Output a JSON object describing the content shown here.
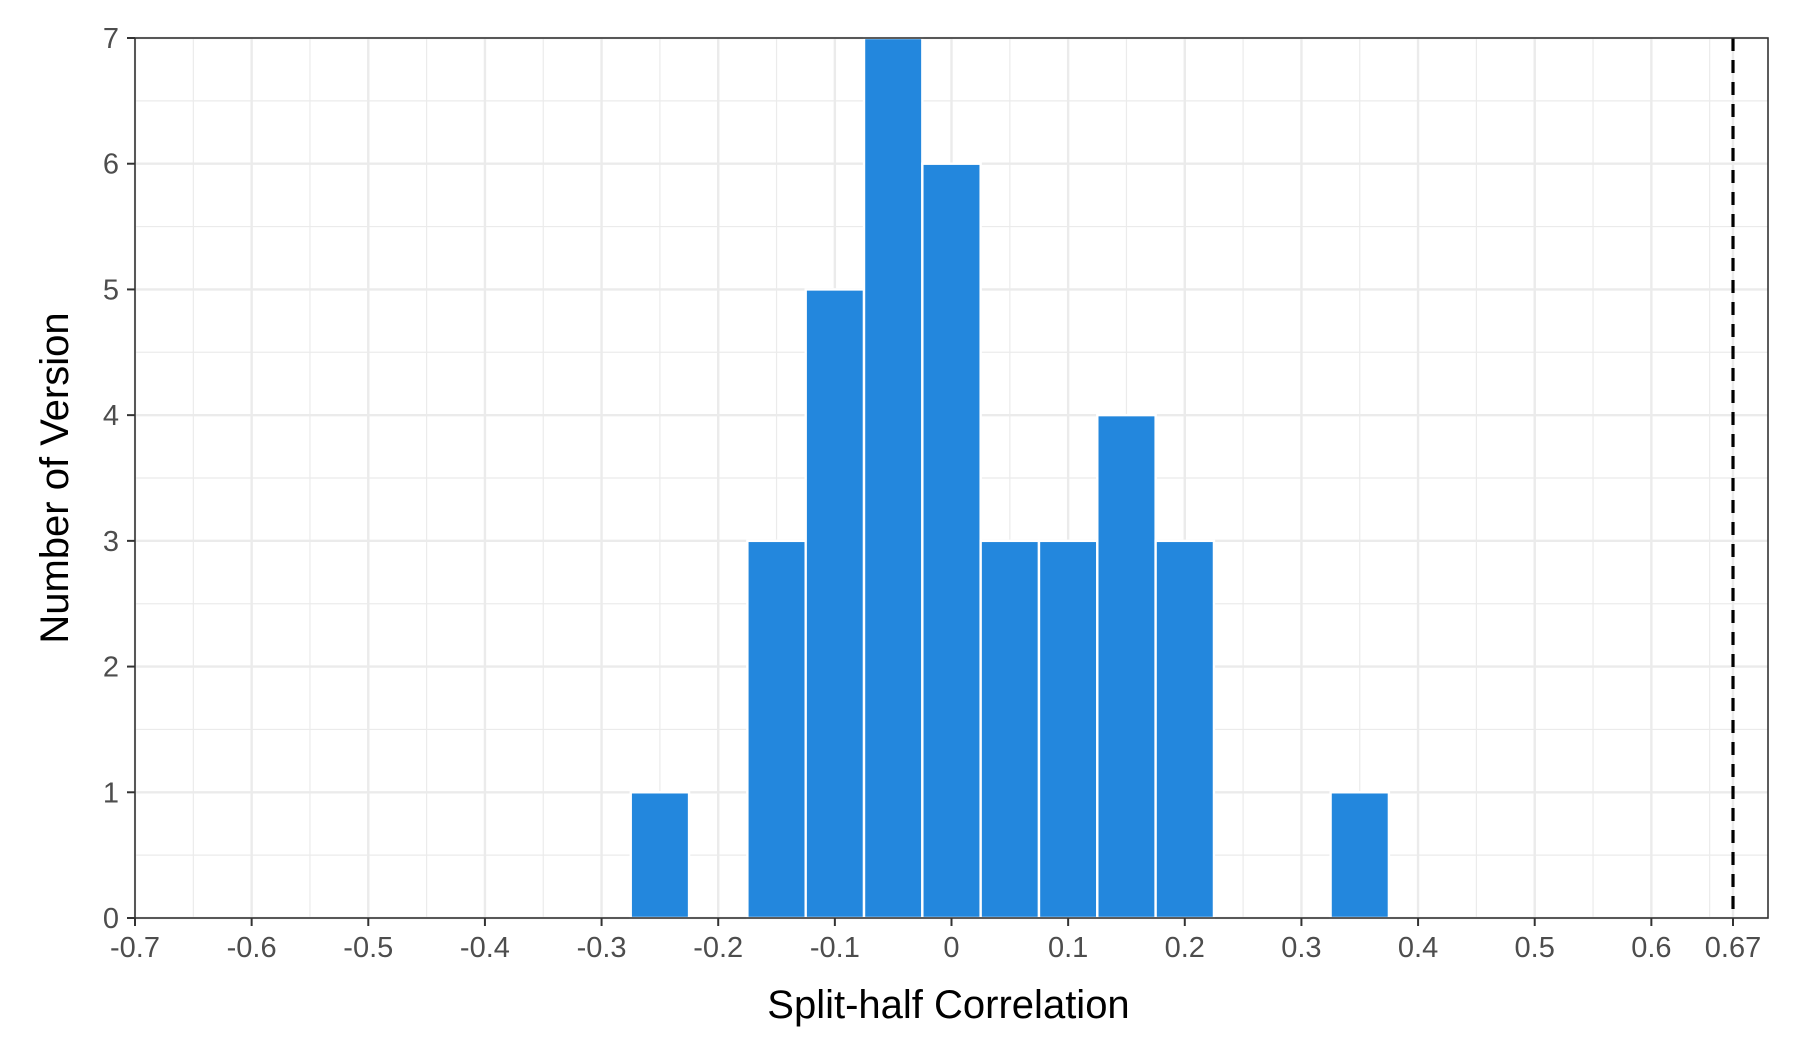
{
  "chart_data": {
    "type": "bar",
    "subtype": "histogram",
    "xlabel": "Split-half Correlation",
    "ylabel": "Number of Version",
    "xlim": [
      -0.7,
      0.7
    ],
    "ylim": [
      0,
      7
    ],
    "x_ticks": [
      {
        "value": -0.7,
        "label": "-0.7"
      },
      {
        "value": -0.6,
        "label": "-0.6"
      },
      {
        "value": -0.5,
        "label": "-0.5"
      },
      {
        "value": -0.4,
        "label": "-0.4"
      },
      {
        "value": -0.3,
        "label": "-0.3"
      },
      {
        "value": -0.2,
        "label": "-0.2"
      },
      {
        "value": -0.1,
        "label": "-0.1"
      },
      {
        "value": 0,
        "label": "0"
      },
      {
        "value": 0.1,
        "label": "0.1"
      },
      {
        "value": 0.2,
        "label": "0.2"
      },
      {
        "value": 0.3,
        "label": "0.3"
      },
      {
        "value": 0.4,
        "label": "0.4"
      },
      {
        "value": 0.5,
        "label": "0.5"
      },
      {
        "value": 0.6,
        "label": "0.6"
      },
      {
        "value": 0.67,
        "label": "0.67"
      }
    ],
    "y_ticks": [
      0,
      1,
      2,
      3,
      4,
      5,
      6,
      7
    ],
    "bin_width": 0.05,
    "bins": [
      {
        "center": -0.25,
        "count": 1
      },
      {
        "center": -0.15,
        "count": 3
      },
      {
        "center": -0.1,
        "count": 5
      },
      {
        "center": -0.05,
        "count": 7
      },
      {
        "center": 0.0,
        "count": 6
      },
      {
        "center": 0.05,
        "count": 3
      },
      {
        "center": 0.1,
        "count": 3
      },
      {
        "center": 0.15,
        "count": 4
      },
      {
        "center": 0.2,
        "count": 3
      },
      {
        "center": 0.35,
        "count": 1
      }
    ],
    "reference_line": {
      "x": 0.67,
      "style": "dashed",
      "color": "#000000"
    },
    "bar_color": "#2387dd",
    "grid": true,
    "legend": "none"
  }
}
